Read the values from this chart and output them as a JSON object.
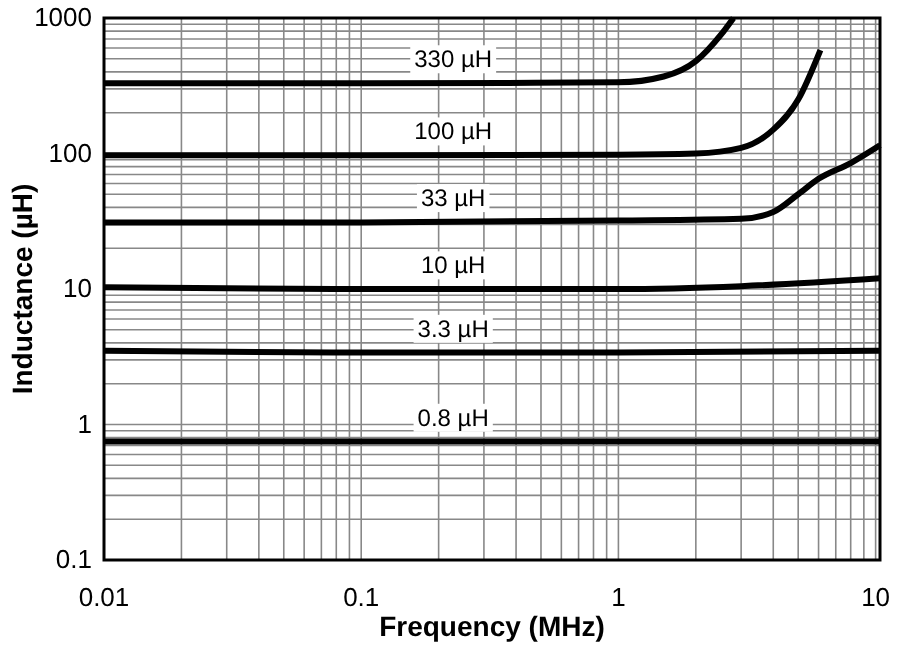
{
  "chart_data": {
    "type": "line",
    "xlabel": "Frequency (MHz)",
    "ylabel": "Inductance (µH)",
    "log": "xy",
    "grid": true,
    "line_style": "solid",
    "marker": "none",
    "xlim": [
      0.01,
      10.4
    ],
    "ylim": [
      0.1,
      1000
    ],
    "xticks": [
      0.01,
      {
        "value": 0.02,
        "label": null
      },
      {
        "value": 0.03,
        "label": null
      },
      {
        "value": 0.04,
        "label": null
      },
      {
        "value": 0.05,
        "label": null
      },
      {
        "value": 0.06,
        "label": null
      },
      {
        "value": 0.07,
        "label": null
      },
      {
        "value": 0.08,
        "label": null
      },
      {
        "value": 0.09,
        "label": null
      },
      0.1,
      {
        "value": 0.2,
        "label": null
      },
      {
        "value": 0.3,
        "label": null
      },
      {
        "value": 0.4,
        "label": null
      },
      {
        "value": 0.5,
        "label": null
      },
      {
        "value": 0.6,
        "label": null
      },
      {
        "value": 0.7,
        "label": null
      },
      {
        "value": 0.8,
        "label": null
      },
      {
        "value": 0.9,
        "label": null
      },
      1,
      {
        "value": 2,
        "label": null
      },
      {
        "value": 3,
        "label": null
      },
      {
        "value": 4,
        "label": null
      },
      {
        "value": 5,
        "label": null
      },
      {
        "value": 6,
        "label": null
      },
      {
        "value": 7,
        "label": null
      },
      {
        "value": 8,
        "label": null
      },
      {
        "value": 9,
        "label": null
      },
      10
    ],
    "yticks": [
      0.1,
      {
        "value": 0.2,
        "label": null
      },
      {
        "value": 0.3,
        "label": null
      },
      {
        "value": 0.4,
        "label": null
      },
      {
        "value": 0.5,
        "label": null
      },
      {
        "value": 0.6,
        "label": null
      },
      {
        "value": 0.7,
        "label": null
      },
      {
        "value": 0.8,
        "label": null
      },
      {
        "value": 0.9,
        "label": null
      },
      1,
      {
        "value": 2,
        "label": null
      },
      {
        "value": 3,
        "label": null
      },
      {
        "value": 4,
        "label": null
      },
      {
        "value": 5,
        "label": null
      },
      {
        "value": 6,
        "label": null
      },
      {
        "value": 7,
        "label": null
      },
      {
        "value": 8,
        "label": null
      },
      {
        "value": 9,
        "label": null
      },
      10,
      {
        "value": 20,
        "label": null
      },
      {
        "value": 30,
        "label": null
      },
      {
        "value": 40,
        "label": null
      },
      {
        "value": 50,
        "label": null
      },
      {
        "value": 60,
        "label": null
      },
      {
        "value": 70,
        "label": null
      },
      {
        "value": 80,
        "label": null
      },
      {
        "value": 90,
        "label": null
      },
      100,
      {
        "value": 200,
        "label": null
      },
      {
        "value": 300,
        "label": null
      },
      {
        "value": 400,
        "label": null
      },
      {
        "value": 500,
        "label": null
      },
      {
        "value": 600,
        "label": null
      },
      {
        "value": 700,
        "label": null
      },
      {
        "value": 800,
        "label": null
      },
      {
        "value": 900,
        "label": null
      },
      1000
    ],
    "series": [
      {
        "name": "330 µH",
        "color": "#000000",
        "x": [
          0.01,
          0.1,
          1,
          1.5,
          2,
          2.5,
          2.8
        ],
        "values": [
          330,
          330,
          335,
          370,
          480,
          750,
          1000
        ]
      },
      {
        "name": "100 µH",
        "color": "#000000",
        "x": [
          0.01,
          0.1,
          1,
          2,
          3,
          4,
          5,
          6.1
        ],
        "values": [
          97,
          97,
          98,
          100,
          110,
          150,
          250,
          580
        ]
      },
      {
        "name": "33 µH",
        "color": "#000000",
        "x": [
          0.01,
          0.1,
          1,
          3,
          4,
          5,
          6,
          8,
          10.4
        ],
        "values": [
          31,
          31,
          32,
          33,
          37,
          50,
          65,
          85,
          115
        ]
      },
      {
        "name": "10 µH",
        "color": "#000000",
        "x": [
          0.01,
          0.1,
          1,
          3,
          10.4
        ],
        "values": [
          10.3,
          10,
          10,
          10.5,
          12
        ]
      },
      {
        "name": "3.3 µH",
        "color": "#000000",
        "x": [
          0.01,
          0.1,
          1,
          10.4
        ],
        "values": [
          3.5,
          3.4,
          3.4,
          3.5
        ]
      },
      {
        "name": "0.8 µH",
        "color": "#000000",
        "x": [
          0.01,
          0.1,
          1,
          10.4
        ],
        "values": [
          0.75,
          0.75,
          0.75,
          0.75
        ]
      }
    ]
  }
}
